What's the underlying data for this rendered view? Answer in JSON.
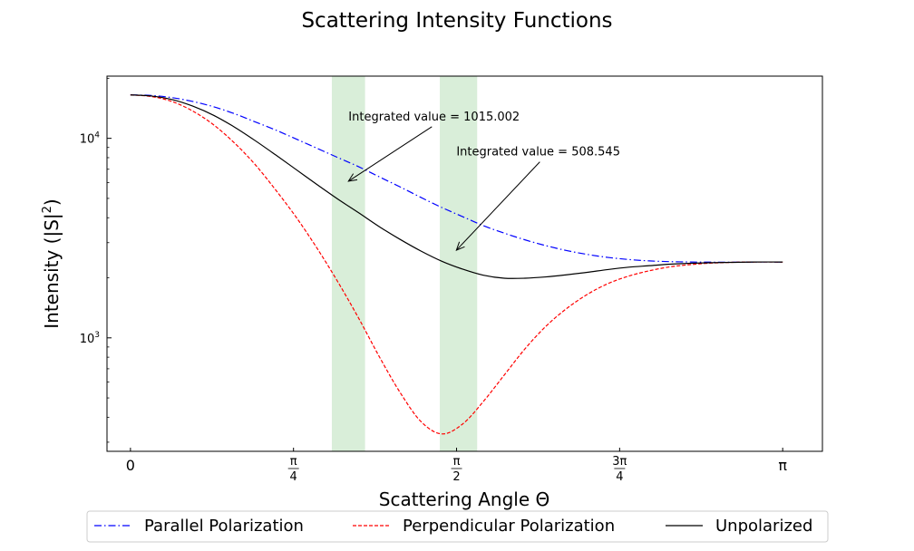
{
  "chart_data": {
    "type": "line",
    "title": "Scattering Intensity Functions",
    "xlabel": "Scattering Angle Θ",
    "ylabel_main": "Intensity (|S|",
    "ylabel_sup": "2",
    "ylabel_end": ")",
    "yscale": "log",
    "xlim": [
      -0.113,
      3.333
    ],
    "ylim": [
      270,
      20500
    ],
    "x_ticks": [
      {
        "value": 0,
        "label": "0"
      },
      {
        "value": 0.7854,
        "num": "π",
        "den": "4"
      },
      {
        "value": 1.5708,
        "num": "π",
        "den": "2"
      },
      {
        "value": 2.3562,
        "num": "3π",
        "den": "4"
      },
      {
        "value": 3.1416,
        "label": "π"
      }
    ],
    "y_ticks": [
      {
        "value": 1000,
        "base": "10",
        "exp": "3"
      },
      {
        "value": 10000,
        "base": "10",
        "exp": "4"
      }
    ],
    "x": [
      0.0,
      0.1,
      0.2,
      0.3,
      0.4,
      0.5,
      0.6,
      0.7,
      0.8,
      0.9,
      1.0,
      1.1,
      1.2,
      1.3,
      1.4,
      1.5,
      1.6,
      1.7,
      1.8,
      1.9,
      2.0,
      2.1,
      2.2,
      2.3,
      2.4,
      2.5,
      2.6,
      2.7,
      2.8,
      2.9,
      3.0,
      3.1416
    ],
    "series": [
      {
        "name": "Parallel Polarization",
        "color": "#0000ff",
        "style": "dashdot",
        "values": [
          16500,
          16400,
          16000,
          15300,
          14400,
          13300,
          12100,
          11000,
          9900,
          8900,
          8000,
          7200,
          6400,
          5700,
          5050,
          4500,
          4050,
          3650,
          3350,
          3100,
          2900,
          2740,
          2620,
          2530,
          2470,
          2430,
          2410,
          2400,
          2395,
          2395,
          2400,
          2400
        ]
      },
      {
        "name": "Perpendicular Polarization",
        "color": "#ff0000",
        "style": "dashed",
        "values": [
          16500,
          16200,
          15300,
          13700,
          11700,
          9500,
          7400,
          5500,
          4000,
          2800,
          1900,
          1250,
          800,
          530,
          380,
          330,
          370,
          480,
          650,
          880,
          1140,
          1400,
          1650,
          1870,
          2040,
          2170,
          2270,
          2330,
          2370,
          2390,
          2400,
          2400
        ]
      },
      {
        "name": "Unpolarized",
        "color": "#000000",
        "style": "solid",
        "values": [
          16500,
          16300,
          15650,
          14500,
          13050,
          11400,
          9750,
          8250,
          6950,
          5850,
          4950,
          4230,
          3600,
          3110,
          2720,
          2420,
          2210,
          2060,
          1990,
          1990,
          2020,
          2070,
          2130,
          2200,
          2260,
          2300,
          2340,
          2365,
          2380,
          2390,
          2400,
          2400
        ]
      }
    ],
    "shaded_regions": [
      {
        "x0": 0.97,
        "x1": 1.13,
        "color": "#2ca02c",
        "opacity": 0.18
      },
      {
        "x0": 1.49,
        "x1": 1.67,
        "color": "#2ca02c",
        "opacity": 0.18
      }
    ],
    "annotations": [
      {
        "text": "Integrated value = 1015.002",
        "text_x": 1.05,
        "text_y": 12300,
        "arrow_x": 1.05,
        "arrow_y": 6100
      },
      {
        "text": "Integrated value = 508.545",
        "text_x": 1.57,
        "text_y": 8200,
        "arrow_x": 1.57,
        "arrow_y": 2750
      }
    ],
    "legend_position": "below"
  }
}
